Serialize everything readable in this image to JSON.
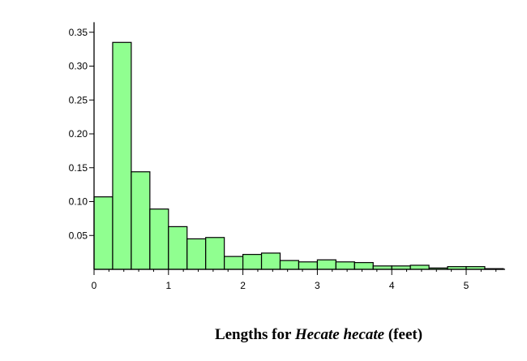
{
  "chart_data": {
    "type": "bar",
    "subtype": "histogram",
    "bin_width": 0.25,
    "bin_starts": [
      0,
      0.25,
      0.5,
      0.75,
      1,
      1.25,
      1.5,
      1.75,
      2,
      2.25,
      2.5,
      2.75,
      3,
      3.25,
      3.5,
      3.75,
      4,
      4.25,
      4.5,
      4.75,
      5,
      5.25
    ],
    "values": [
      0.107,
      0.335,
      0.144,
      0.089,
      0.063,
      0.045,
      0.047,
      0.019,
      0.022,
      0.024,
      0.013,
      0.011,
      0.014,
      0.011,
      0.01,
      0.005,
      0.005,
      0.006,
      0.002,
      0.004,
      0.004,
      0.001
    ],
    "xlim": [
      0,
      5.5
    ],
    "ylim": [
      0,
      0.36
    ],
    "x_ticks": [
      0,
      1,
      2,
      3,
      4,
      5
    ],
    "x_tick_labels": [
      "0",
      "1",
      "2",
      "3",
      "4",
      "5"
    ],
    "y_ticks": [
      0.05,
      0.1,
      0.15,
      0.2,
      0.25,
      0.3,
      0.35
    ],
    "y_tick_labels": [
      "0.05",
      "0.10",
      "0.15",
      "0.20",
      "0.25",
      "0.30",
      "0.35"
    ],
    "caption_parts": [
      "Lengths for ",
      "Hecate hecate",
      " (feet)"
    ],
    "grid": false,
    "bar_color": "#90ff90",
    "edge_color": "#000000"
  }
}
